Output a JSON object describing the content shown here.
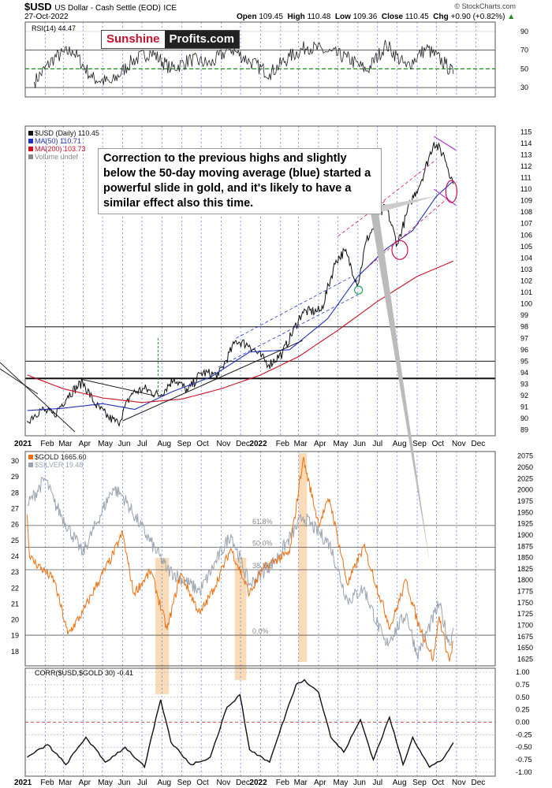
{
  "header": {
    "symbol": "$USD",
    "name": "US Dollar - Cash Settle (EOD)",
    "exchange": "ICE",
    "date": "27-Oct-2022",
    "open_label": "Open",
    "open": "109.45",
    "high_label": "High",
    "high": "110.48",
    "low_label": "Low",
    "low": "109.36",
    "close_label": "Close",
    "close": "110.45",
    "chg_label": "Chg",
    "chg": "+0.90 (+0.82%)",
    "credit": "© StockCharts.com"
  },
  "logo": {
    "part1": "Sunshine",
    "part2": "Profits.com"
  },
  "callout": "Correction to the previous highs and slightly below the 50-day moving average (blue) started a powerful slide in gold, and it's likely to have a similar effect also this time.",
  "colors": {
    "usd": "#111111",
    "ma50": "#2233bb",
    "ma200": "#cc1122",
    "gold": "#f07010",
    "silver": "#9aa4b0",
    "green": "#228822",
    "annot": "#cc1155",
    "purple": "#b040d0",
    "band": "#f5b060"
  },
  "chart_data": [
    {
      "type": "line",
      "title": "RSI(14) 44.47",
      "ylim": [
        20,
        100
      ],
      "y_ticks": [
        30,
        50,
        70,
        90
      ],
      "levels": [
        30,
        50,
        70
      ],
      "x": [
        "2021-01",
        "2021-02",
        "2021-03",
        "2021-04",
        "2021-05",
        "2021-06",
        "2021-07",
        "2021-08",
        "2021-09",
        "2021-10",
        "2021-11",
        "2021-12",
        "2022-01",
        "2022-02",
        "2022-03",
        "2022-04",
        "2022-05",
        "2022-06",
        "2022-07",
        "2022-08",
        "2022-09",
        "2022-10",
        "2022-10-27"
      ],
      "values": [
        36,
        62,
        70,
        40,
        35,
        58,
        68,
        50,
        60,
        55,
        72,
        58,
        45,
        63,
        74,
        68,
        62,
        48,
        76,
        52,
        72,
        55,
        44.47
      ]
    },
    {
      "type": "line",
      "legend": [
        "$USD (Daily) 110.45",
        "MA(50) 110.71",
        "MA(200) 103.73",
        "Volume undef"
      ],
      "ylim": [
        88.5,
        115.5
      ],
      "y_ticks": [
        89,
        90,
        91,
        92,
        93,
        94,
        95,
        96,
        97,
        98,
        99,
        100,
        101,
        102,
        103,
        104,
        105,
        106,
        107,
        108,
        109,
        110,
        111,
        112,
        113,
        114,
        115
      ],
      "horizontal_levels": [
        93.5,
        95,
        98
      ],
      "series": [
        {
          "name": "$USD (Daily) 110.45",
          "x": [
            "2021-01-04",
            "2021-01-25",
            "2021-02-15",
            "2021-03-08",
            "2021-03-31",
            "2021-04-20",
            "2021-05-10",
            "2021-05-25",
            "2021-06-15",
            "2021-07-05",
            "2021-07-28",
            "2021-08-20",
            "2021-09-10",
            "2021-10-01",
            "2021-10-28",
            "2021-11-24",
            "2021-12-15",
            "2022-01-14",
            "2022-02-04",
            "2022-03-07",
            "2022-04-05",
            "2022-04-28",
            "2022-05-12",
            "2022-06-01",
            "2022-06-14",
            "2022-07-14",
            "2022-08-01",
            "2022-08-22",
            "2022-09-07",
            "2022-09-27",
            "2022-10-13",
            "2022-10-27"
          ],
          "values": [
            89.8,
            90.8,
            90.3,
            92.0,
            93.2,
            91.2,
            90.1,
            89.6,
            92.2,
            92.6,
            92.0,
            93.5,
            92.4,
            94.0,
            93.8,
            96.8,
            96.4,
            94.7,
            95.7,
            99.3,
            99.4,
            103.8,
            104.6,
            101.7,
            105.5,
            108.6,
            105.2,
            108.9,
            110.7,
            114.1,
            112.9,
            110.45
          ]
        },
        {
          "name": "MA(50) 110.71",
          "x": [
            "2021-01-04",
            "2021-03-01",
            "2021-05-01",
            "2021-06-20",
            "2021-08-15",
            "2021-10-15",
            "2021-12-15",
            "2022-02-15",
            "2022-04-15",
            "2022-06-01",
            "2022-07-15",
            "2022-08-25",
            "2022-10-01",
            "2022-10-27"
          ],
          "values": [
            90.7,
            90.9,
            91.3,
            90.8,
            92.3,
            93.6,
            95.8,
            96.0,
            98.7,
            102.4,
            104.8,
            106.4,
            109.4,
            110.71
          ]
        },
        {
          "name": "MA(200) 103.73",
          "x": [
            "2021-01-04",
            "2021-03-01",
            "2021-05-01",
            "2021-07-01",
            "2021-09-01",
            "2021-11-01",
            "2022-01-01",
            "2022-03-01",
            "2022-05-01",
            "2022-07-01",
            "2022-09-01",
            "2022-10-27"
          ],
          "values": [
            93.8,
            92.6,
            91.8,
            91.4,
            91.7,
            92.6,
            93.8,
            95.4,
            97.7,
            100.2,
            102.4,
            103.73
          ]
        }
      ]
    },
    {
      "type": "line",
      "legend": [
        "$GOLD 1665.60",
        "$SILVER 19.48"
      ],
      "y2lim": [
        1610,
        2085
      ],
      "y2_ticks": [
        1625,
        1650,
        1675,
        1700,
        1725,
        1750,
        1775,
        1800,
        1825,
        1850,
        1875,
        1900,
        1925,
        1950,
        1975,
        2000,
        2025,
        2050,
        2075
      ],
      "ylim": [
        17.1,
        30.6
      ],
      "y_ticks": [
        18,
        19,
        20,
        21,
        22,
        23,
        24,
        25,
        26,
        27,
        28,
        29,
        30
      ],
      "fib_levels": [
        {
          "label": "61.8%",
          "value": 1921
        },
        {
          "label": "50.0%",
          "value": 1873
        },
        {
          "label": "38.2%",
          "value": 1823
        },
        {
          "label": "0.0%",
          "value": 1678
        }
      ],
      "series": [
        {
          "name": "$GOLD 1665.60",
          "x": [
            "2021-01-04",
            "2021-01-08",
            "2021-02-15",
            "2021-03-08",
            "2021-03-31",
            "2021-04-20",
            "2021-05-15",
            "2021-06-01",
            "2021-06-18",
            "2021-07-15",
            "2021-08-09",
            "2021-08-30",
            "2021-09-29",
            "2021-10-20",
            "2021-11-16",
            "2021-12-15",
            "2022-01-05",
            "2022-01-25",
            "2022-02-15",
            "2022-03-08",
            "2022-04-01",
            "2022-04-18",
            "2022-05-16",
            "2022-06-10",
            "2022-07-21",
            "2022-08-15",
            "2022-09-01",
            "2022-09-26",
            "2022-10-05",
            "2022-10-21",
            "2022-10-27"
          ],
          "values": [
            1945,
            1850,
            1800,
            1680,
            1728,
            1785,
            1850,
            1905,
            1770,
            1820,
            1690,
            1815,
            1725,
            1780,
            1870,
            1770,
            1825,
            1845,
            1860,
            2070,
            1925,
            1980,
            1790,
            1875,
            1695,
            1800,
            1710,
            1625,
            1720,
            1620,
            1665.6
          ]
        },
        {
          "name": "$SILVER 19.48",
          "x": [
            "2021-01-04",
            "2021-02-01",
            "2021-02-15",
            "2021-03-31",
            "2021-05-17",
            "2021-06-01",
            "2021-06-28",
            "2021-08-09",
            "2021-09-29",
            "2021-11-16",
            "2021-12-15",
            "2022-01-25",
            "2022-03-08",
            "2022-04-18",
            "2022-05-16",
            "2022-06-10",
            "2022-07-14",
            "2022-08-15",
            "2022-09-01",
            "2022-10-05",
            "2022-10-21",
            "2022-10-27"
          ],
          "values": [
            27.2,
            28.9,
            27.4,
            24.2,
            28.3,
            27.8,
            26.0,
            23.2,
            21.8,
            25.4,
            22.2,
            23.8,
            26.5,
            24.8,
            21.2,
            22.0,
            18.4,
            20.4,
            17.8,
            21.0,
            18.4,
            19.48
          ]
        }
      ],
      "highlight_ranges": [
        [
          "2021-07-22",
          "2021-08-12"
        ],
        [
          "2021-11-22",
          "2021-12-10"
        ],
        [
          "2022-03-01",
          "2022-03-14"
        ]
      ]
    },
    {
      "type": "line",
      "legend": [
        "CORR($USD,$GOLD 30) -0.41"
      ],
      "ylim": [
        -1.08,
        1.08
      ],
      "y_ticks": [
        -1.0,
        -0.75,
        -0.5,
        -0.25,
        0.0,
        0.25,
        0.5,
        0.75,
        1.0
      ],
      "y_tick_labels": [
        "-1.00",
        "-0.75",
        "-0.50",
        "-0.25",
        "0.00",
        "0.25",
        "0.50",
        "0.75",
        "1.00"
      ],
      "x": [
        "2021-01-04",
        "2021-02-05",
        "2021-03-05",
        "2021-04-05",
        "2021-05-05",
        "2021-06-05",
        "2021-07-05",
        "2021-07-30",
        "2021-08-15",
        "2021-09-15",
        "2021-10-15",
        "2021-11-10",
        "2021-11-30",
        "2021-12-15",
        "2022-01-15",
        "2022-02-10",
        "2022-02-25",
        "2022-03-10",
        "2022-04-01",
        "2022-04-20",
        "2022-05-10",
        "2022-06-05",
        "2022-06-25",
        "2022-07-20",
        "2022-08-10",
        "2022-08-25",
        "2022-09-20",
        "2022-10-10",
        "2022-10-27"
      ],
      "values": [
        -0.7,
        -0.45,
        -0.85,
        -0.3,
        -0.8,
        -0.5,
        -0.9,
        0.45,
        -0.4,
        -0.85,
        -0.7,
        0.3,
        0.55,
        -0.55,
        -0.8,
        0.2,
        0.75,
        0.85,
        0.6,
        -0.3,
        -0.6,
        0.05,
        -0.75,
        0.1,
        -0.85,
        -0.3,
        -0.9,
        -0.75,
        -0.41
      ]
    }
  ],
  "x_axis": {
    "labels": [
      "2021",
      "Feb",
      "Mar",
      "Apr",
      "May",
      "Jun",
      "Jul",
      "Aug",
      "Sep",
      "Oct",
      "Nov",
      "Dec",
      "2022",
      "Feb",
      "Mar",
      "Apr",
      "May",
      "Jun",
      "Jul",
      "Aug",
      "Sep",
      "Oct",
      "Nov",
      "Dec"
    ]
  }
}
